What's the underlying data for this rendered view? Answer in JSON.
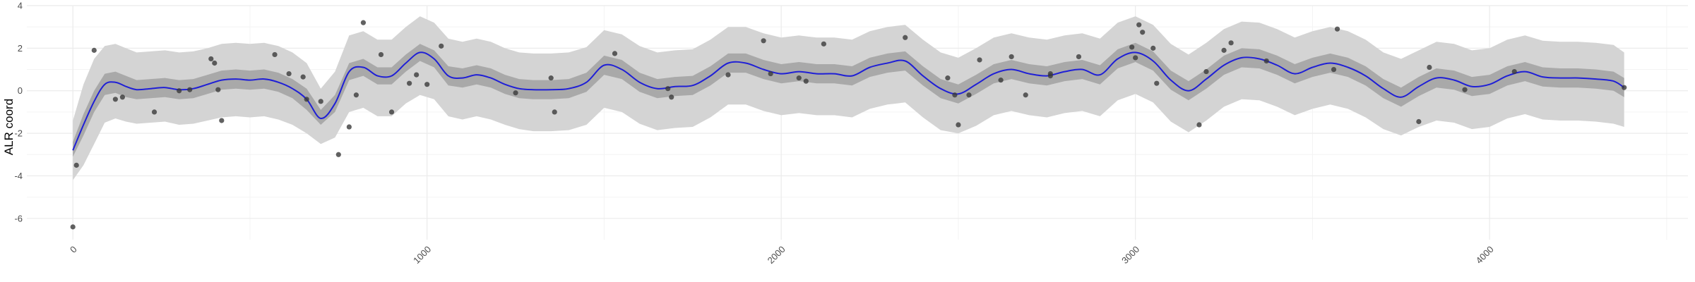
{
  "chart_data": {
    "type": "line",
    "title": "",
    "xlabel": "",
    "ylabel": "ALR coord",
    "xlim": [
      -130,
      4560
    ],
    "ylim": [
      -7,
      4
    ],
    "x_ticks": [
      0,
      1000,
      2000,
      3000,
      4000
    ],
    "x_tick_labels": [
      "0",
      "1000",
      "2000",
      "3000",
      "4000"
    ],
    "y_ticks": [
      -6,
      -4,
      -2,
      0,
      2,
      4
    ],
    "y_tick_labels": [
      "-6",
      "-4",
      "-2",
      "0",
      "2",
      "4"
    ],
    "grid": true,
    "colors": {
      "outer_band": "#d4d4d4",
      "inner_band": "#a9a9a9",
      "mean_line": "#1f1fd6",
      "points": "#3a3a3a",
      "grid_major": "#ebebeb",
      "grid_minor": "#f4f4f4"
    },
    "series": [
      {
        "role": "mean",
        "x": [
          0,
          30,
          60,
          90,
          120,
          150,
          180,
          220,
          260,
          300,
          340,
          380,
          420,
          460,
          500,
          540,
          580,
          620,
          660,
          700,
          740,
          780,
          820,
          860,
          900,
          940,
          980,
          1020,
          1060,
          1100,
          1140,
          1180,
          1220,
          1260,
          1300,
          1350,
          1400,
          1450,
          1500,
          1550,
          1600,
          1650,
          1700,
          1750,
          1800,
          1850,
          1900,
          1950,
          2000,
          2050,
          2100,
          2150,
          2200,
          2250,
          2300,
          2350,
          2400,
          2450,
          2500,
          2550,
          2600,
          2650,
          2700,
          2750,
          2800,
          2850,
          2900,
          2950,
          3000,
          3050,
          3100,
          3150,
          3200,
          3250,
          3300,
          3350,
          3400,
          3450,
          3500,
          3550,
          3600,
          3650,
          3700,
          3750,
          3800,
          3850,
          3900,
          3950,
          4000,
          4050,
          4100,
          4150,
          4200,
          4250,
          4300,
          4350,
          4380
        ],
        "y": [
          -2.8,
          -1.6,
          -0.5,
          0.3,
          0.4,
          0.2,
          0.05,
          0.1,
          0.15,
          0.05,
          0.1,
          0.3,
          0.5,
          0.55,
          0.5,
          0.55,
          0.4,
          0.1,
          -0.4,
          -1.3,
          -0.6,
          0.9,
          1.1,
          0.7,
          0.7,
          1.3,
          1.8,
          1.5,
          0.7,
          0.6,
          0.75,
          0.6,
          0.3,
          0.1,
          0.05,
          0.05,
          0.1,
          0.4,
          1.2,
          1.0,
          0.4,
          0.1,
          0.2,
          0.25,
          0.7,
          1.3,
          1.3,
          1.0,
          0.8,
          0.9,
          0.8,
          0.8,
          0.7,
          1.1,
          1.3,
          1.4,
          0.7,
          0.1,
          -0.15,
          0.3,
          0.8,
          1.0,
          0.8,
          0.7,
          0.9,
          1.0,
          0.75,
          1.5,
          1.8,
          1.4,
          0.5,
          0.0,
          0.55,
          1.2,
          1.55,
          1.5,
          1.2,
          0.8,
          1.1,
          1.3,
          1.1,
          0.7,
          0.1,
          -0.3,
          0.2,
          0.6,
          0.5,
          0.2,
          0.3,
          0.7,
          0.9,
          0.65,
          0.6,
          0.6,
          0.55,
          0.45,
          0.15
        ],
        "inner_lower": [
          -3.1,
          -2.1,
          -1.0,
          -0.2,
          -0.1,
          -0.3,
          -0.4,
          -0.35,
          -0.3,
          -0.4,
          -0.35,
          -0.15,
          0.05,
          0.1,
          0.05,
          0.1,
          -0.05,
          -0.35,
          -0.9,
          -1.6,
          -1.0,
          0.5,
          0.7,
          0.3,
          0.3,
          0.9,
          1.4,
          1.1,
          0.25,
          0.15,
          0.3,
          0.15,
          -0.15,
          -0.35,
          -0.4,
          -0.4,
          -0.35,
          -0.05,
          0.75,
          0.55,
          -0.05,
          -0.35,
          -0.25,
          -0.2,
          0.25,
          0.85,
          0.85,
          0.55,
          0.35,
          0.45,
          0.35,
          0.35,
          0.25,
          0.65,
          0.85,
          0.95,
          0.25,
          -0.35,
          -0.6,
          -0.15,
          0.35,
          0.55,
          0.35,
          0.25,
          0.45,
          0.55,
          0.3,
          1.05,
          1.35,
          0.95,
          0.05,
          -0.45,
          0.1,
          0.75,
          1.1,
          1.05,
          0.75,
          0.35,
          0.65,
          0.85,
          0.65,
          0.25,
          -0.35,
          -0.75,
          -0.25,
          0.15,
          0.05,
          -0.25,
          -0.15,
          0.25,
          0.45,
          0.2,
          0.15,
          0.15,
          0.1,
          0.0,
          -0.3
        ],
        "inner_upper": [
          -2.4,
          -1.1,
          0.0,
          0.8,
          0.9,
          0.7,
          0.5,
          0.55,
          0.6,
          0.5,
          0.55,
          0.75,
          0.95,
          1.0,
          0.95,
          1.0,
          0.85,
          0.55,
          0.1,
          -0.9,
          -0.2,
          1.3,
          1.5,
          1.1,
          1.1,
          1.7,
          2.2,
          1.9,
          1.15,
          1.05,
          1.2,
          1.05,
          0.75,
          0.55,
          0.5,
          0.5,
          0.55,
          0.85,
          1.65,
          1.45,
          0.85,
          0.55,
          0.65,
          0.7,
          1.15,
          1.75,
          1.75,
          1.45,
          1.25,
          1.35,
          1.25,
          1.25,
          1.15,
          1.55,
          1.75,
          1.85,
          1.15,
          0.55,
          0.3,
          0.75,
          1.25,
          1.45,
          1.25,
          1.15,
          1.35,
          1.45,
          1.2,
          1.95,
          2.25,
          1.85,
          0.95,
          0.45,
          1.0,
          1.65,
          2.0,
          1.95,
          1.65,
          1.25,
          1.55,
          1.75,
          1.55,
          1.15,
          0.55,
          0.15,
          0.65,
          1.05,
          0.95,
          0.65,
          0.75,
          1.15,
          1.35,
          1.1,
          1.05,
          1.05,
          1.0,
          0.9,
          0.6
        ],
        "outer_lower": [
          -4.2,
          -3.5,
          -2.5,
          -1.5,
          -1.3,
          -1.45,
          -1.55,
          -1.5,
          -1.45,
          -1.6,
          -1.55,
          -1.4,
          -1.25,
          -1.2,
          -1.25,
          -1.2,
          -1.35,
          -1.6,
          -2.0,
          -2.5,
          -2.2,
          -1.0,
          -0.8,
          -1.2,
          -1.2,
          -0.6,
          -0.2,
          -0.4,
          -1.2,
          -1.35,
          -1.2,
          -1.35,
          -1.6,
          -1.8,
          -1.9,
          -1.9,
          -1.85,
          -1.6,
          -0.8,
          -1.0,
          -1.55,
          -1.85,
          -1.75,
          -1.7,
          -1.25,
          -0.65,
          -0.65,
          -0.95,
          -1.15,
          -1.05,
          -1.15,
          -1.15,
          -1.25,
          -0.85,
          -0.65,
          -0.55,
          -1.25,
          -1.85,
          -2.0,
          -1.65,
          -1.15,
          -0.95,
          -1.15,
          -1.25,
          -1.05,
          -0.95,
          -1.2,
          -0.45,
          -0.15,
          -0.55,
          -1.45,
          -1.95,
          -1.4,
          -0.75,
          -0.4,
          -0.45,
          -0.75,
          -1.15,
          -0.85,
          -0.65,
          -0.85,
          -1.25,
          -1.8,
          -2.1,
          -1.7,
          -1.4,
          -1.5,
          -1.8,
          -1.7,
          -1.3,
          -1.1,
          -1.35,
          -1.4,
          -1.4,
          -1.45,
          -1.55,
          -1.7
        ],
        "outer_upper": [
          -1.4,
          0.3,
          1.5,
          2.1,
          2.2,
          2.0,
          1.8,
          1.85,
          1.9,
          1.8,
          1.85,
          2.0,
          2.2,
          2.25,
          2.2,
          2.25,
          2.1,
          1.8,
          1.3,
          0.1,
          0.9,
          2.6,
          2.8,
          2.4,
          2.4,
          3.0,
          3.5,
          3.2,
          2.45,
          2.3,
          2.45,
          2.3,
          2.0,
          1.8,
          1.75,
          1.75,
          1.8,
          2.05,
          2.85,
          2.65,
          2.1,
          1.8,
          1.9,
          1.95,
          2.4,
          3.0,
          3.0,
          2.7,
          2.5,
          2.6,
          2.5,
          2.5,
          2.4,
          2.8,
          3.0,
          3.1,
          2.4,
          1.8,
          1.55,
          2.0,
          2.5,
          2.7,
          2.5,
          2.4,
          2.6,
          2.7,
          2.45,
          3.2,
          3.5,
          3.1,
          2.2,
          1.7,
          2.25,
          2.9,
          3.25,
          3.2,
          2.9,
          2.5,
          2.8,
          3.0,
          2.8,
          2.4,
          1.8,
          1.5,
          1.9,
          2.3,
          2.2,
          1.9,
          2.0,
          2.4,
          2.6,
          2.35,
          2.3,
          2.3,
          2.25,
          2.15,
          1.8
        ]
      },
      {
        "role": "points",
        "x": [
          0,
          10,
          60,
          120,
          140,
          230,
          300,
          330,
          390,
          400,
          410,
          420,
          570,
          610,
          650,
          660,
          700,
          750,
          780,
          800,
          820,
          870,
          900,
          950,
          970,
          1000,
          1040,
          1250,
          1350,
          1360,
          1530,
          1680,
          1690,
          1850,
          1950,
          1970,
          2050,
          2070,
          2120,
          2350,
          2470,
          2490,
          2500,
          2530,
          2560,
          2620,
          2650,
          2690,
          2760,
          2760,
          2840,
          2990,
          3000,
          3010,
          3020,
          3050,
          3060,
          3180,
          3200,
          3250,
          3270,
          3370,
          3560,
          3570,
          3800,
          3830,
          3930,
          4070,
          4380
        ],
        "y": [
          -6.4,
          -3.5,
          1.9,
          -0.4,
          -0.3,
          -1.0,
          0.0,
          0.05,
          1.5,
          1.3,
          0.05,
          -1.4,
          1.7,
          0.8,
          0.65,
          -0.4,
          -0.5,
          -3.0,
          -1.7,
          -0.2,
          3.2,
          1.7,
          -1.0,
          0.35,
          0.75,
          0.3,
          2.1,
          -0.1,
          0.6,
          -1.0,
          1.75,
          0.1,
          -0.3,
          0.75,
          2.35,
          0.8,
          0.6,
          0.45,
          2.2,
          2.5,
          0.6,
          -0.2,
          -1.6,
          -0.2,
          1.45,
          0.5,
          1.6,
          -0.2,
          0.8,
          0.7,
          1.6,
          2.05,
          1.55,
          3.1,
          2.75,
          2.0,
          0.35,
          -1.6,
          0.9,
          1.9,
          2.25,
          1.4,
          1.0,
          2.9,
          -1.45,
          1.1,
          0.05,
          0.9,
          0.15
        ]
      }
    ]
  }
}
